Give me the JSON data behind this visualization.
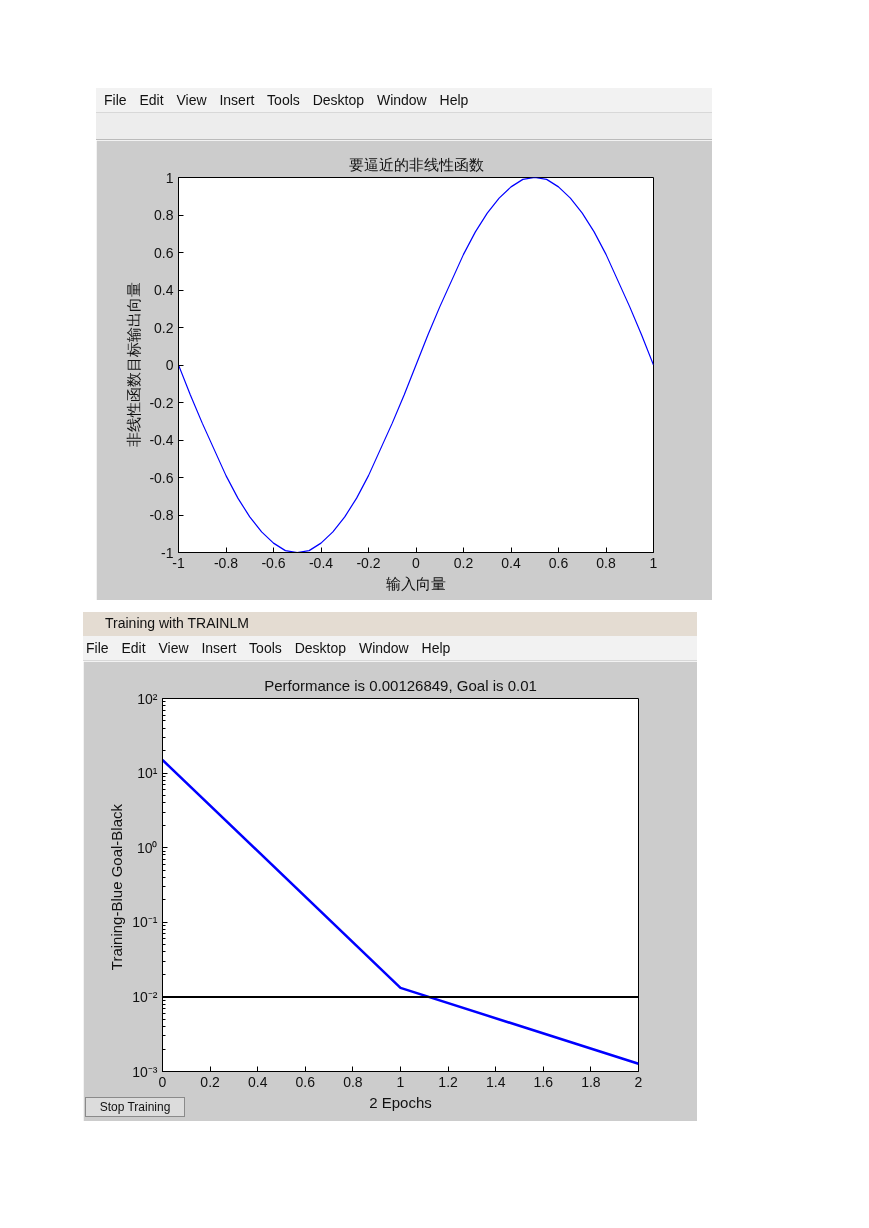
{
  "chart_data": [
    {
      "type": "line",
      "title": "要逼近的非线性函数",
      "xlabel": "输入向量",
      "ylabel": "非线性函数目标输出向量",
      "x": [
        -1,
        -0.95,
        -0.9,
        -0.85,
        -0.8,
        -0.75,
        -0.7,
        -0.65,
        -0.6,
        -0.55,
        -0.5,
        -0.45,
        -0.4,
        -0.35,
        -0.3,
        -0.25,
        -0.2,
        -0.15,
        -0.1,
        -0.05,
        0,
        0.05,
        0.1,
        0.15,
        0.2,
        0.25,
        0.3,
        0.35,
        0.4,
        0.45,
        0.5,
        0.55,
        0.6,
        0.65,
        0.7,
        0.75,
        0.8,
        0.85,
        0.9,
        0.95,
        1
      ],
      "series": [
        {
          "color": "#0000ff",
          "values": [
            0,
            -0.16,
            -0.31,
            -0.45,
            -0.59,
            -0.71,
            -0.81,
            -0.89,
            -0.95,
            -0.99,
            -1,
            -0.99,
            -0.95,
            -0.89,
            -0.81,
            -0.71,
            -0.59,
            -0.45,
            -0.31,
            -0.16,
            0,
            0.16,
            0.31,
            0.45,
            0.59,
            0.71,
            0.81,
            0.89,
            0.95,
            0.99,
            1,
            0.99,
            0.95,
            0.89,
            0.81,
            0.71,
            0.59,
            0.45,
            0.31,
            0.16,
            0
          ]
        }
      ],
      "xlim": [
        -1,
        1
      ],
      "ylim": [
        -1,
        1
      ],
      "xticks": [
        -1,
        -0.8,
        -0.6,
        -0.4,
        -0.2,
        0,
        0.2,
        0.4,
        0.6,
        0.8,
        1
      ],
      "yticks": [
        -1,
        -0.8,
        -0.6,
        -0.4,
        -0.2,
        0,
        0.2,
        0.4,
        0.6,
        0.8,
        1
      ],
      "annotations": [
        "File Edit View Insert Tools Desktop Window Help"
      ]
    },
    {
      "type": "line",
      "title": "Performance is 0.00126849, Goal is 0.01",
      "xlabel": "2 Epochs",
      "ylabel": "Training-Blue  Goal-Black",
      "x": [
        0,
        1,
        2
      ],
      "series": [
        {
          "color": "#0000ff",
          "values": [
            15,
            0.0132,
            0.00126849
          ]
        }
      ],
      "log": "y",
      "xlim": [
        0,
        2
      ],
      "ylim": [
        0.001,
        100
      ],
      "xticks": [
        0,
        0.2,
        0.4,
        0.6,
        0.8,
        1,
        1.2,
        1.4,
        1.6,
        1.8,
        2
      ],
      "yticks": [
        {
          "value": 0.001,
          "label": "10⁻³"
        },
        {
          "value": 0.01,
          "label": "10⁻²"
        },
        {
          "value": 0.1,
          "label": "10⁻¹"
        },
        {
          "value": 1,
          "label": "10⁰"
        },
        {
          "value": 10,
          "label": "10¹"
        },
        {
          "value": 100,
          "label": "10²"
        }
      ],
      "ref_lines": [
        {
          "axis": "y",
          "value": 0.01,
          "color": "#000000"
        }
      ],
      "annotations": [
        "Training with TRAINLM",
        "File Edit View Insert Tools Desktop Window Help",
        "Stop Training"
      ]
    }
  ]
}
